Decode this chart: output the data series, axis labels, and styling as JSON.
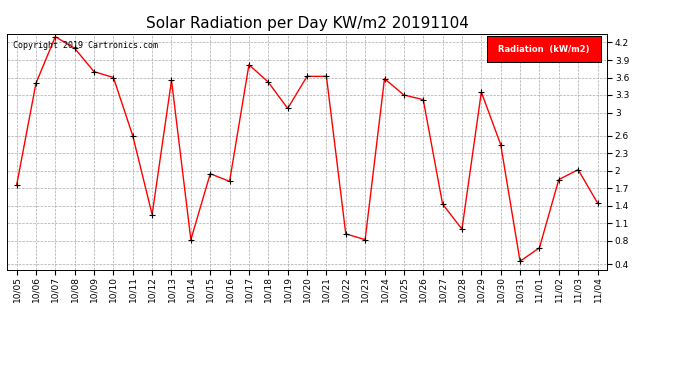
{
  "title": "Solar Radiation per Day KW/m2 20191104",
  "copyright": "Copyright 2019 Cartronics.com",
  "legend_label": "Radiation  (kW/m2)",
  "dates": [
    "10/05",
    "10/06",
    "10/07",
    "10/08",
    "10/09",
    "10/10",
    "10/11",
    "10/12",
    "10/13",
    "10/14",
    "10/15",
    "10/16",
    "10/17",
    "10/18",
    "10/19",
    "10/20",
    "10/21",
    "10/22",
    "10/23",
    "10/24",
    "10/25",
    "10/26",
    "10/27",
    "10/28",
    "10/29",
    "10/30",
    "10/31",
    "11/01",
    "11/02",
    "11/03",
    "11/04"
  ],
  "values": [
    1.75,
    3.5,
    4.3,
    4.1,
    3.7,
    3.6,
    2.6,
    1.25,
    3.55,
    0.82,
    1.95,
    1.82,
    3.82,
    3.52,
    3.07,
    3.62,
    3.62,
    0.92,
    0.82,
    3.58,
    3.3,
    3.22,
    1.43,
    1.0,
    3.35,
    2.45,
    0.45,
    0.68,
    1.85,
    2.02,
    1.45
  ],
  "line_color": "red",
  "marker_color": "black",
  "bg_color": "white",
  "grid_color": "#aaaaaa",
  "ylim": [
    0.3,
    4.35
  ],
  "yticks": [
    0.4,
    0.8,
    1.1,
    1.4,
    1.7,
    2.0,
    2.3,
    2.6,
    3.0,
    3.3,
    3.6,
    3.9,
    4.2
  ],
  "legend_bg": "red",
  "legend_text_color": "white",
  "title_fontsize": 11,
  "tick_fontsize": 6.5,
  "copyright_fontsize": 6,
  "legend_fontsize": 6
}
